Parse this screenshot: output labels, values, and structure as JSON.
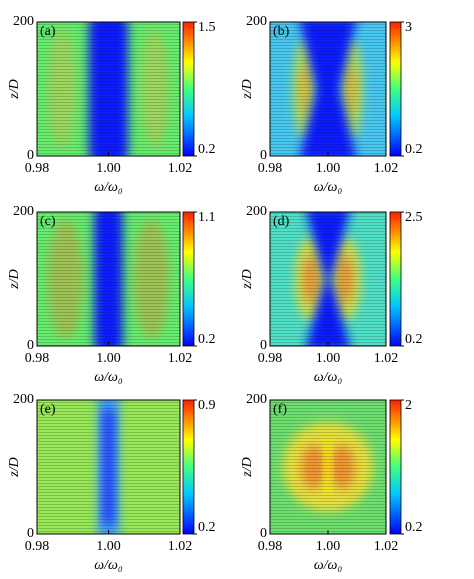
{
  "chart_data": [
    {
      "type": "heatmap",
      "label": "(a)",
      "xlabel": "ω/ω₀",
      "ylabel": "z/D",
      "xlim": [
        0.98,
        1.02
      ],
      "xticks": [
        0.98,
        {
          "value": 1,
          "label": "1.00"
        },
        1.02
      ],
      "ylim": [
        0,
        200
      ],
      "yticks": [
        0,
        200
      ],
      "clim": [
        0.2,
        1.5
      ],
      "cticks": [
        0.2,
        1.5
      ]
    },
    {
      "type": "heatmap",
      "label": "(b)",
      "xlabel": "ω/ω₀",
      "ylabel": "z/D",
      "xlim": [
        0.98,
        1.02
      ],
      "xticks": [
        0.98,
        {
          "value": 1,
          "label": "1.00"
        },
        1.02
      ],
      "ylim": [
        0,
        200
      ],
      "yticks": [
        0,
        200
      ],
      "clim": [
        0.2,
        3
      ],
      "cticks": [
        0.2,
        3
      ]
    },
    {
      "type": "heatmap",
      "label": "(c)",
      "xlabel": "ω/ω₀",
      "ylabel": "z/D",
      "xlim": [
        0.98,
        1.02
      ],
      "xticks": [
        0.98,
        {
          "value": 1,
          "label": "1.00"
        },
        1.02
      ],
      "ylim": [
        0,
        200
      ],
      "yticks": [
        0,
        200
      ],
      "clim": [
        0.2,
        1.1
      ],
      "cticks": [
        0.2,
        1.1
      ]
    },
    {
      "type": "heatmap",
      "label": "(d)",
      "xlabel": "ω/ω₀",
      "ylabel": "z/D",
      "xlim": [
        0.98,
        1.02
      ],
      "xticks": [
        0.98,
        {
          "value": 1,
          "label": "1.00"
        },
        1.02
      ],
      "ylim": [
        0,
        200
      ],
      "yticks": [
        0,
        200
      ],
      "clim": [
        0.2,
        2.5
      ],
      "cticks": [
        0.2,
        2.5
      ]
    },
    {
      "type": "heatmap",
      "label": "(e)",
      "xlabel": "ω/ω₀",
      "ylabel": "z/D",
      "xlim": [
        0.98,
        1.02
      ],
      "xticks": [
        0.98,
        {
          "value": 1,
          "label": "1.00"
        },
        1.02
      ],
      "ylim": [
        0,
        200
      ],
      "yticks": [
        0,
        200
      ],
      "clim": [
        0.2,
        0.9
      ],
      "cticks": [
        0.2,
        0.9
      ]
    },
    {
      "type": "heatmap",
      "label": "(f)",
      "xlabel": "ω/ω₀",
      "ylabel": "z/D",
      "xlim": [
        0.98,
        1.02
      ],
      "xticks": [
        0.98,
        {
          "value": 1,
          "label": "1.00"
        },
        1.02
      ],
      "ylim": [
        0,
        200
      ],
      "yticks": [
        0,
        200
      ],
      "clim": [
        0.2,
        2
      ],
      "cticks": [
        0.2,
        2
      ]
    }
  ]
}
